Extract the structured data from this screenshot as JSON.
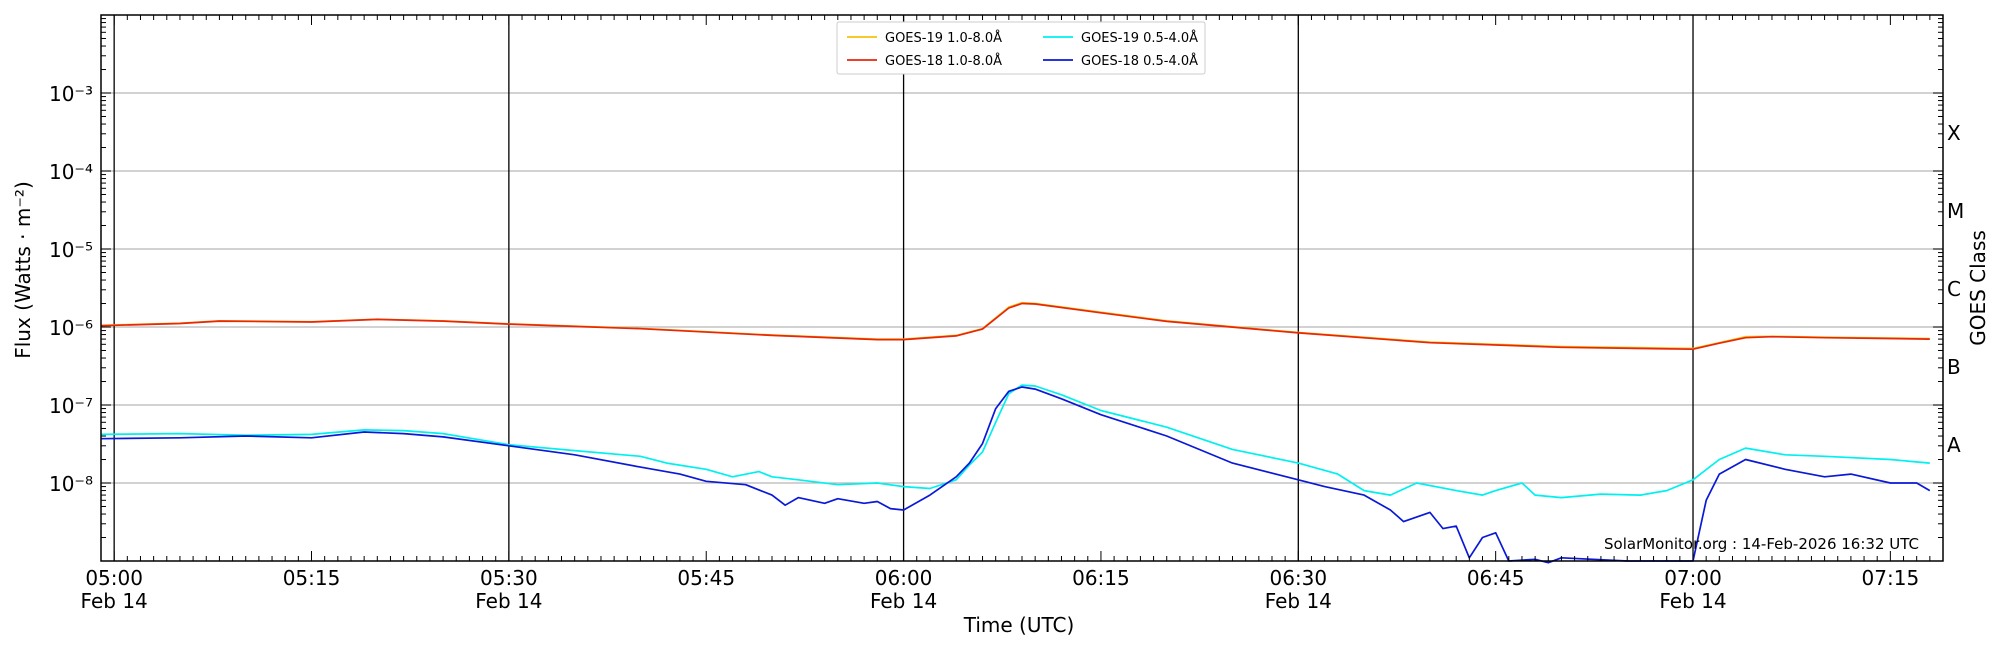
{
  "chart_data": {
    "type": "line",
    "xlabel": "Time (UTC)",
    "ylabel": "Flux (Watts · m⁻²)",
    "right_axis_label": "GOES Class",
    "credit": "SolarMonitor.org : 14-Feb-2026 16:32 UTC",
    "y_scale": "log",
    "ylim": [
      1e-09,
      0.01
    ],
    "xlim": [
      "04:59",
      "07:19"
    ],
    "grid": "horizontal",
    "legend_position": "top-center",
    "x_ticks": [
      {
        "t": "05:00",
        "label": "05:00",
        "date": "Feb 14"
      },
      {
        "t": "05:15",
        "label": "05:15",
        "date": ""
      },
      {
        "t": "05:30",
        "label": "05:30",
        "date": "Feb 14"
      },
      {
        "t": "05:45",
        "label": "05:45",
        "date": ""
      },
      {
        "t": "06:00",
        "label": "06:00",
        "date": "Feb 14"
      },
      {
        "t": "06:15",
        "label": "06:15",
        "date": ""
      },
      {
        "t": "06:30",
        "label": "06:30",
        "date": "Feb 14"
      },
      {
        "t": "06:45",
        "label": "06:45",
        "date": ""
      },
      {
        "t": "07:00",
        "label": "07:00",
        "date": "Feb 14"
      },
      {
        "t": "07:15",
        "label": "07:15",
        "date": ""
      }
    ],
    "vertical_lines": [
      "05:00",
      "05:30",
      "06:00",
      "06:30",
      "07:00"
    ],
    "y_ticks": [
      {
        "exp": -8,
        "label": "10⁻⁸"
      },
      {
        "exp": -7,
        "label": "10⁻⁷"
      },
      {
        "exp": -6,
        "label": "10⁻⁶"
      },
      {
        "exp": -5,
        "label": "10⁻⁵"
      },
      {
        "exp": -4,
        "label": "10⁻⁴"
      },
      {
        "exp": -3,
        "label": "10⁻³"
      }
    ],
    "goes_classes": [
      {
        "label": "A",
        "exp": -7.5
      },
      {
        "label": "B",
        "exp": -6.5
      },
      {
        "label": "C",
        "exp": -5.5
      },
      {
        "label": "M",
        "exp": -4.5
      },
      {
        "label": "X",
        "exp": -3.5
      }
    ],
    "series": [
      {
        "name": "GOES-19 1.0-8.0Å",
        "color": "#f4c20d",
        "points": [
          [
            "04:59",
            1.05e-06
          ],
          [
            "05:05",
            1.12e-06
          ],
          [
            "05:08",
            1.2e-06
          ],
          [
            "05:15",
            1.17e-06
          ],
          [
            "05:20",
            1.26e-06
          ],
          [
            "05:25",
            1.2e-06
          ],
          [
            "05:30",
            1.1e-06
          ],
          [
            "05:40",
            9.6e-07
          ],
          [
            "05:50",
            7.9e-07
          ],
          [
            "05:58",
            7e-07
          ],
          [
            "06:00",
            7e-07
          ],
          [
            "06:04",
            7.8e-07
          ],
          [
            "06:06",
            9.5e-07
          ],
          [
            "06:08",
            1.8e-06
          ],
          [
            "06:09",
            2.05e-06
          ],
          [
            "06:10",
            2e-06
          ],
          [
            "06:15",
            1.55e-06
          ],
          [
            "06:20",
            1.2e-06
          ],
          [
            "06:30",
            8.5e-07
          ],
          [
            "06:40",
            6.4e-07
          ],
          [
            "06:50",
            5.6e-07
          ],
          [
            "07:00",
            5.3e-07
          ],
          [
            "07:02",
            6.3e-07
          ],
          [
            "07:04",
            7.5e-07
          ],
          [
            "07:06",
            7.6e-07
          ],
          [
            "07:10",
            7.4e-07
          ],
          [
            "07:18",
            7.1e-07
          ]
        ]
      },
      {
        "name": "GOES-18 1.0-8.0Å",
        "color": "#e8260b",
        "points": [
          [
            "04:59",
            1.04e-06
          ],
          [
            "05:05",
            1.11e-06
          ],
          [
            "05:08",
            1.19e-06
          ],
          [
            "05:15",
            1.16e-06
          ],
          [
            "05:20",
            1.25e-06
          ],
          [
            "05:25",
            1.19e-06
          ],
          [
            "05:30",
            1.09e-06
          ],
          [
            "05:40",
            9.5e-07
          ],
          [
            "05:50",
            7.8e-07
          ],
          [
            "05:58",
            6.9e-07
          ],
          [
            "06:00",
            6.9e-07
          ],
          [
            "06:04",
            7.7e-07
          ],
          [
            "06:06",
            9.4e-07
          ],
          [
            "06:08",
            1.75e-06
          ],
          [
            "06:09",
            2e-06
          ],
          [
            "06:10",
            1.97e-06
          ],
          [
            "06:15",
            1.52e-06
          ],
          [
            "06:20",
            1.18e-06
          ],
          [
            "06:30",
            8.4e-07
          ],
          [
            "06:40",
            6.3e-07
          ],
          [
            "06:50",
            5.5e-07
          ],
          [
            "07:00",
            5.2e-07
          ],
          [
            "07:02",
            6.2e-07
          ],
          [
            "07:04",
            7.3e-07
          ],
          [
            "07:06",
            7.5e-07
          ],
          [
            "07:10",
            7.3e-07
          ],
          [
            "07:18",
            7e-07
          ]
        ]
      },
      {
        "name": "GOES-19 0.5-4.0Å",
        "color": "#00f0f0",
        "points": [
          [
            "04:59",
            4.2e-08
          ],
          [
            "05:05",
            4.3e-08
          ],
          [
            "05:10",
            4.1e-08
          ],
          [
            "05:15",
            4.2e-08
          ],
          [
            "05:19",
            4.8e-08
          ],
          [
            "05:22",
            4.7e-08
          ],
          [
            "05:25",
            4.3e-08
          ],
          [
            "05:30",
            3.1e-08
          ],
          [
            "05:35",
            2.6e-08
          ],
          [
            "05:40",
            2.2e-08
          ],
          [
            "05:42",
            1.8e-08
          ],
          [
            "05:45",
            1.5e-08
          ],
          [
            "05:47",
            1.2e-08
          ],
          [
            "05:49",
            1.4e-08
          ],
          [
            "05:50",
            1.2e-08
          ],
          [
            "05:52",
            1.1e-08
          ],
          [
            "05:55",
            9.5e-09
          ],
          [
            "05:58",
            1e-08
          ],
          [
            "06:00",
            9e-09
          ],
          [
            "06:02",
            8.5e-09
          ],
          [
            "06:04",
            1.1e-08
          ],
          [
            "06:05",
            1.7e-08
          ],
          [
            "06:06",
            2.5e-08
          ],
          [
            "06:07",
            6e-08
          ],
          [
            "06:08",
            1.4e-07
          ],
          [
            "06:09",
            1.8e-07
          ],
          [
            "06:10",
            1.75e-07
          ],
          [
            "06:12",
            1.35e-07
          ],
          [
            "06:15",
            8.5e-08
          ],
          [
            "06:20",
            5.2e-08
          ],
          [
            "06:25",
            2.7e-08
          ],
          [
            "06:30",
            1.8e-08
          ],
          [
            "06:33",
            1.3e-08
          ],
          [
            "06:35",
            8e-09
          ],
          [
            "06:37",
            7e-09
          ],
          [
            "06:39",
            1e-08
          ],
          [
            "06:42",
            8e-09
          ],
          [
            "06:44",
            7e-09
          ],
          [
            "06:45",
            8e-09
          ],
          [
            "06:47",
            1e-08
          ],
          [
            "06:48",
            7e-09
          ],
          [
            "06:50",
            6.5e-09
          ],
          [
            "06:53",
            7.2e-09
          ],
          [
            "06:56",
            7e-09
          ],
          [
            "06:58",
            8e-09
          ],
          [
            "07:00",
            1.1e-08
          ],
          [
            "07:02",
            2e-08
          ],
          [
            "07:04",
            2.8e-08
          ],
          [
            "07:07",
            2.3e-08
          ],
          [
            "07:10",
            2.2e-08
          ],
          [
            "07:15",
            2e-08
          ],
          [
            "07:18",
            1.8e-08
          ]
        ]
      },
      {
        "name": "GOES-18 0.5-4.0Å",
        "color": "#0a18d8",
        "points": [
          [
            "04:59",
            3.7e-08
          ],
          [
            "05:05",
            3.8e-08
          ],
          [
            "05:10",
            4e-08
          ],
          [
            "05:15",
            3.8e-08
          ],
          [
            "05:19",
            4.5e-08
          ],
          [
            "05:22",
            4.3e-08
          ],
          [
            "05:25",
            3.9e-08
          ],
          [
            "05:30",
            3e-08
          ],
          [
            "05:35",
            2.3e-08
          ],
          [
            "05:40",
            1.6e-08
          ],
          [
            "05:43",
            1.3e-08
          ],
          [
            "05:45",
            1.05e-08
          ],
          [
            "05:48",
            9.5e-09
          ],
          [
            "05:50",
            7e-09
          ],
          [
            "05:51",
            5.2e-09
          ],
          [
            "05:52",
            6.5e-09
          ],
          [
            "05:54",
            5.5e-09
          ],
          [
            "05:55",
            6.3e-09
          ],
          [
            "05:57",
            5.5e-09
          ],
          [
            "05:58",
            5.8e-09
          ],
          [
            "05:59",
            4.7e-09
          ],
          [
            "06:00",
            4.5e-09
          ],
          [
            "06:02",
            7e-09
          ],
          [
            "06:04",
            1.2e-08
          ],
          [
            "06:05",
            1.8e-08
          ],
          [
            "06:06",
            3.2e-08
          ],
          [
            "06:07",
            9e-08
          ],
          [
            "06:08",
            1.5e-07
          ],
          [
            "06:09",
            1.7e-07
          ],
          [
            "06:10",
            1.6e-07
          ],
          [
            "06:12",
            1.2e-07
          ],
          [
            "06:15",
            7.5e-08
          ],
          [
            "06:20",
            4e-08
          ],
          [
            "06:25",
            1.8e-08
          ],
          [
            "06:30",
            1.1e-08
          ],
          [
            "06:32",
            9e-09
          ],
          [
            "06:35",
            7e-09
          ],
          [
            "06:37",
            4.5e-09
          ],
          [
            "06:38",
            3.2e-09
          ],
          [
            "06:40",
            4.2e-09
          ],
          [
            "06:41",
            2.6e-09
          ],
          [
            "06:42",
            2.8e-09
          ],
          [
            "06:43",
            1.1e-09
          ],
          [
            "06:44",
            2e-09
          ],
          [
            "06:45",
            2.3e-09
          ],
          [
            "06:46",
            1e-09
          ],
          [
            "06:48",
            1.05e-09
          ],
          [
            "06:49",
            9.5e-10
          ],
          [
            "06:50",
            1.1e-09
          ],
          [
            "06:55",
            1e-09
          ],
          [
            "07:00",
            1e-09
          ],
          [
            "07:01",
            6e-09
          ],
          [
            "07:02",
            1.3e-08
          ],
          [
            "07:04",
            2e-08
          ],
          [
            "07:07",
            1.5e-08
          ],
          [
            "07:10",
            1.2e-08
          ],
          [
            "07:12",
            1.3e-08
          ],
          [
            "07:15",
            1e-08
          ],
          [
            "07:17",
            1e-08
          ],
          [
            "07:18",
            8e-09
          ]
        ]
      }
    ]
  }
}
